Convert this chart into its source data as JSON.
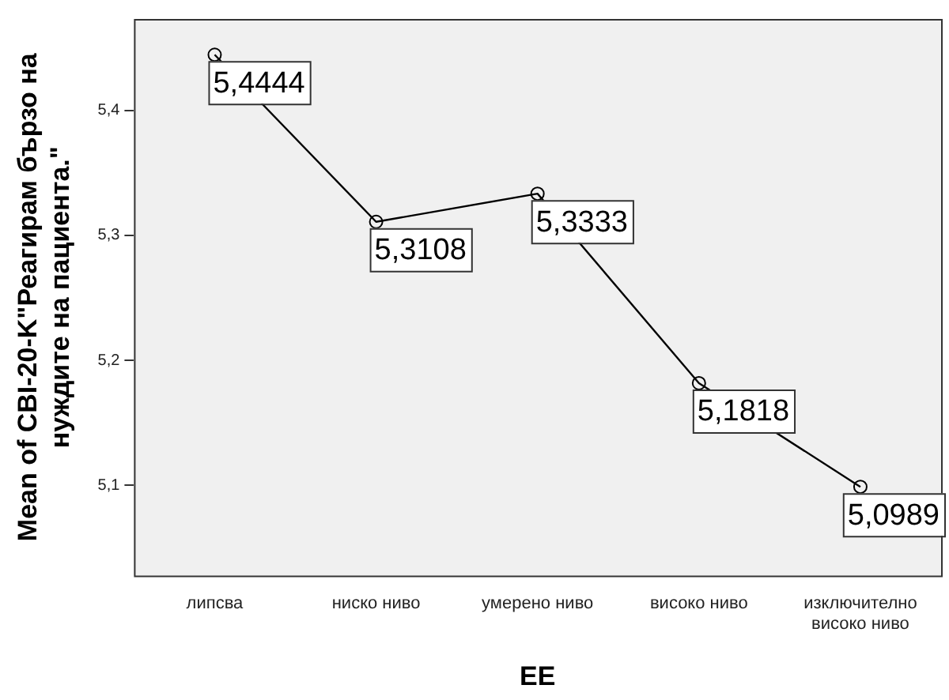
{
  "chart_data": {
    "type": "line",
    "xlabel": "EE",
    "ylabel": "Mean of CBI-20-K\"Реагирам бързо на нуждите на пациента.\"",
    "categories": [
      "липсва",
      "ниско ниво",
      "умерено ниво",
      "високо ниво",
      "изключително високо ниво"
    ],
    "series": [
      {
        "color": "#000000",
        "values": [
          5.4444,
          5.3108,
          5.3333,
          5.1818,
          5.0989
        ],
        "value_labels": [
          "5,4444",
          "5,3108",
          "5,3333",
          "5,1818",
          "5,0989"
        ]
      }
    ],
    "ylim": [
      5.028,
      5.473
    ],
    "yticks": [
      {
        "value": 5.1,
        "label": "5,1"
      },
      {
        "value": 5.2,
        "label": "5,2"
      },
      {
        "value": 5.3,
        "label": "5,3"
      },
      {
        "value": 5.4,
        "label": "5,4"
      }
    ],
    "marker": "circle",
    "line_style": "solid",
    "grid": false,
    "legend": false
  }
}
